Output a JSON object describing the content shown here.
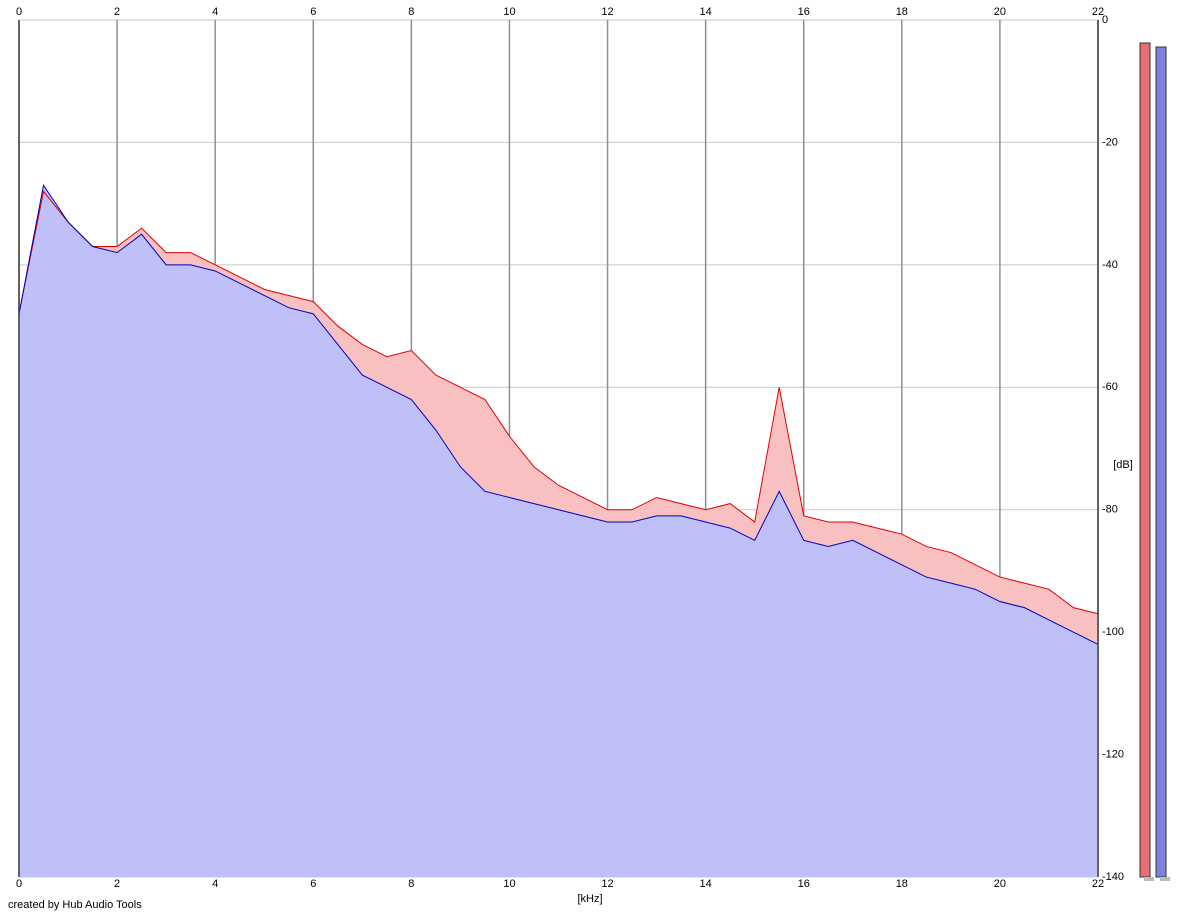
{
  "chart_data": {
    "type": "line",
    "x_label": "[kHz]",
    "y_label": "[dB]",
    "footer": "created by Hub Audio Tools",
    "x": [
      0,
      0.5,
      1,
      1.5,
      2,
      2.5,
      3,
      3.5,
      4,
      4.5,
      5,
      5.5,
      6,
      6.5,
      7,
      7.5,
      8,
      8.5,
      9,
      9.5,
      10,
      10.5,
      11,
      11.5,
      12,
      12.5,
      13,
      13.5,
      14,
      14.5,
      15,
      15.5,
      16,
      16.5,
      17,
      17.5,
      18,
      18.5,
      19,
      19.5,
      20,
      20.5,
      21,
      21.5,
      22
    ],
    "series": [
      {
        "color": "#e00000",
        "fill": "#f8c0c0",
        "values": [
          -48,
          -28,
          -33,
          -37,
          -37,
          -34,
          -38,
          -38,
          -40,
          -42,
          -44,
          -45,
          -46,
          -50,
          -53,
          -55,
          -54,
          -58,
          -60,
          -62,
          -68,
          -73,
          -76,
          -78,
          -80,
          -80,
          -78,
          -79,
          -80,
          -79,
          -82,
          -60,
          -81,
          -82,
          -82,
          -83,
          -84,
          -86,
          -87,
          -89,
          -91,
          -92,
          -93,
          -96,
          -97
        ]
      },
      {
        "color": "#0000c0",
        "fill": "#c0c0f8",
        "values": [
          -48,
          -27,
          -33,
          -37,
          -38,
          -35,
          -40,
          -40,
          -41,
          -43,
          -45,
          -47,
          -48,
          -53,
          -58,
          -60,
          -62,
          -67,
          -73,
          -77,
          -78,
          -79,
          -80,
          -81,
          -82,
          -82,
          -81,
          -81,
          -82,
          -83,
          -85,
          -77,
          -85,
          -86,
          -85,
          -87,
          -89,
          -91,
          -92,
          -93,
          -95,
          -96,
          -98,
          -100,
          -102
        ]
      }
    ],
    "xlim": [
      0,
      22
    ],
    "xticks": [
      0,
      2,
      4,
      6,
      8,
      10,
      12,
      14,
      16,
      18,
      20,
      22
    ],
    "ylim": [
      -140,
      0
    ],
    "yticks": [
      0,
      -20,
      -40,
      -60,
      -80,
      -100,
      -120,
      -140
    ],
    "grid": true
  }
}
